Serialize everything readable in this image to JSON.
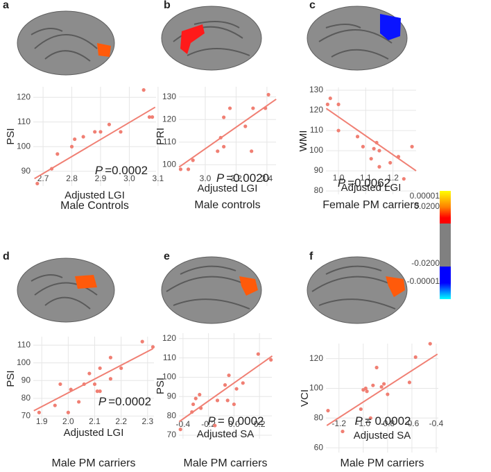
{
  "chart_data": [
    {
      "type": "scatter",
      "panel": "a",
      "title": "Male Controls",
      "xlabel": "Adjusted LGI",
      "ylabel": "PSI",
      "annotation_symbol": "P",
      "annotation": "=0.0002",
      "color": "#f07f73",
      "grid": true,
      "x": [
        2.68,
        2.73,
        2.75,
        2.8,
        2.81,
        2.84,
        2.88,
        2.9,
        2.93,
        2.97,
        3.05,
        3.07,
        3.08
      ],
      "y": [
        85,
        91,
        97,
        100,
        103,
        104,
        106,
        106,
        109,
        106,
        123,
        112,
        112
      ],
      "trend": {
        "x": [
          2.67,
          3.09
        ],
        "y": [
          87,
          116
        ]
      },
      "xlim": [
        2.666,
        3.093
      ],
      "ylim": [
        84,
        124.3
      ],
      "xticks": [
        2.7,
        2.8,
        2.9,
        {
          "value": 3,
          "label": "3.0"
        },
        3.1
      ],
      "yticks": [
        90,
        100,
        110,
        120
      ]
    },
    {
      "type": "scatter",
      "panel": "b",
      "title": "Male controls",
      "xlabel": "Adjusted LGI",
      "ylabel": "PRI",
      "annotation_symbol": "P",
      "annotation": "=0.0020",
      "color": "#f07f73",
      "grid": true,
      "x": [
        2.84,
        2.89,
        2.92,
        3.08,
        3.1,
        3.12,
        3.12,
        3.16,
        3.26,
        3.3,
        3.31,
        3.39,
        3.41
      ],
      "y": [
        98,
        98,
        102,
        106,
        112,
        108,
        121,
        125,
        117,
        106,
        125,
        125,
        131
      ],
      "trend": {
        "x": [
          2.83,
          3.46
        ],
        "y": [
          99,
          129
        ]
      },
      "xlim": [
        2.829,
        3.459
      ],
      "ylim": [
        90.6,
        134.5
      ],
      "xticks": [
        {
          "value": 3,
          "label": "3.0"
        },
        3.2,
        3.4
      ],
      "yticks": [
        100,
        110,
        120,
        130
      ]
    },
    {
      "type": "scatter",
      "panel": "c",
      "title": "Female PM carriers",
      "xlabel": "Adjusted LGI",
      "ylabel": "WMI",
      "annotation_symbol": "P",
      "annotation": "=0.0062",
      "color": "#f07f73",
      "grid": true,
      "x": [
        0.96,
        0.97,
        1.0,
        1.0,
        1.07,
        1.09,
        1.12,
        1.13,
        1.14,
        1.15,
        1.15,
        1.19,
        1.22,
        1.24,
        1.27
      ],
      "y": [
        123,
        126,
        110,
        123,
        107,
        102,
        96,
        101,
        104,
        92,
        100,
        94,
        97,
        86,
        102
      ],
      "trend": {
        "x": [
          0.955,
          1.285
        ],
        "y": [
          121,
          90
        ]
      },
      "xlim": [
        0.954,
        1.285
      ],
      "ylim": [
        78.3,
        131.4
      ],
      "xticks": [
        {
          "value": 1,
          "label": "1.0"
        },
        1.1,
        1.2
      ],
      "yticks": [
        80,
        90,
        100,
        110,
        120,
        130
      ]
    },
    {
      "type": "scatter",
      "panel": "d",
      "title": "Male PM carriers",
      "xlabel": "Adjusted LGI",
      "ylabel": "PSI",
      "annotation_symbol": "P",
      "annotation": "=0.0002",
      "color": "#f07f73",
      "grid": true,
      "x": [
        1.89,
        1.95,
        1.97,
        2.0,
        2.01,
        2.04,
        2.06,
        2.08,
        2.1,
        2.11,
        2.12,
        2.12,
        2.16,
        2.16,
        2.2,
        2.28,
        2.32
      ],
      "y": [
        72,
        76,
        88,
        72,
        85,
        78,
        88,
        94,
        88,
        84,
        84,
        97,
        103,
        91,
        97,
        112,
        109
      ],
      "trend": {
        "x": [
          1.87,
          2.32
        ],
        "y": [
          73,
          108
        ]
      },
      "xlim": [
        1.868,
        2.324
      ],
      "ylim": [
        67.4,
        114.8
      ],
      "xticks": [
        1.9,
        {
          "value": 2,
          "label": "2.0"
        },
        2.1,
        2.2,
        2.3
      ],
      "yticks": [
        70,
        80,
        90,
        100,
        110
      ]
    },
    {
      "type": "scatter",
      "panel": "e",
      "title": "Male PM carriers",
      "xlabel": "Adjusted SA",
      "ylabel": "PSI",
      "annotation_symbol": "P",
      "annotation": "= 0.0002",
      "color": "#f07f73",
      "grid": true,
      "x": [
        -0.42,
        -0.33,
        -0.32,
        -0.3,
        -0.27,
        -0.26,
        -0.15,
        -0.13,
        -0.07,
        -0.04,
        -0.05,
        0.0,
        0.02,
        0.07,
        0.19,
        0.29
      ],
      "y": [
        73,
        82,
        86,
        89,
        91,
        84,
        75,
        88,
        96,
        101,
        88,
        86,
        94,
        97,
        112,
        109
      ],
      "trend": {
        "x": [
          -0.43,
          0.3
        ],
        "y": [
          77,
          111
        ]
      },
      "xlim": [
        -0.432,
        0.297
      ],
      "ylim": [
        68.2,
        122.8
      ],
      "xticks": [
        -0.4,
        -0.2,
        {
          "value": 0,
          "label": "0.0"
        },
        0.2
      ],
      "yticks": [
        70,
        80,
        90,
        100,
        110,
        120
      ]
    },
    {
      "type": "scatter",
      "panel": "f",
      "title": "Male PM carriers",
      "xlabel": "Adjusted SA",
      "ylabel": "VCI",
      "annotation_symbol": "P",
      "annotation": "= 0.0002",
      "color": "#f07f73",
      "grid": true,
      "x": [
        -1.29,
        -1.17,
        -1.02,
        -1.0,
        -0.98,
        -0.97,
        -0.94,
        -0.92,
        -0.89,
        -0.85,
        -0.83,
        -0.8,
        -0.62,
        -0.57,
        -0.45
      ],
      "y": [
        85,
        71,
        86,
        99,
        100,
        98,
        80,
        102,
        114,
        101,
        103,
        96,
        104,
        121,
        130
      ],
      "trend": {
        "x": [
          -1.3,
          -0.39
        ],
        "y": [
          75,
          123
        ]
      },
      "xlim": [
        -1.307,
        -0.383
      ],
      "ylim": [
        56.8,
        130.1
      ],
      "xticks": [
        -1.2,
        {
          "value": -1,
          "label": "-1.0"
        },
        -0.8,
        -0.6,
        -0.4
      ],
      "yticks": [
        60,
        80,
        100,
        120
      ]
    }
  ],
  "colorbar": {
    "labels": [
      "0.00001",
      "0.0200",
      "-0.0200",
      "-0.00001"
    ]
  }
}
